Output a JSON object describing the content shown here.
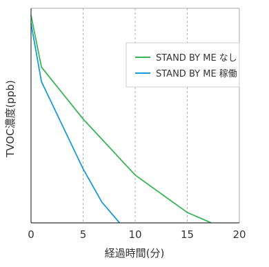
{
  "chart_data": {
    "type": "line",
    "xlabel": "経過時間(分)",
    "ylabel": "TVOC濃度(ppb)",
    "xlim": [
      0,
      20
    ],
    "xticks": [
      "0",
      "5",
      "10",
      "15",
      "20"
    ],
    "grid": "vertical dashed",
    "legend": "top-right",
    "y_tick_labels": false,
    "series": [
      {
        "name": "STAND BY ME なし",
        "color": "#3db35a",
        "x": [
          0,
          1,
          5,
          10,
          15,
          17.3
        ],
        "y": [
          100,
          75,
          50,
          23,
          5,
          0
        ]
      },
      {
        "name": "STAND BY ME 稼働",
        "color": "#1a9bd7",
        "x": [
          0,
          1,
          5,
          6.8,
          8.5
        ],
        "y": [
          96,
          68,
          26,
          10,
          0
        ]
      }
    ]
  }
}
